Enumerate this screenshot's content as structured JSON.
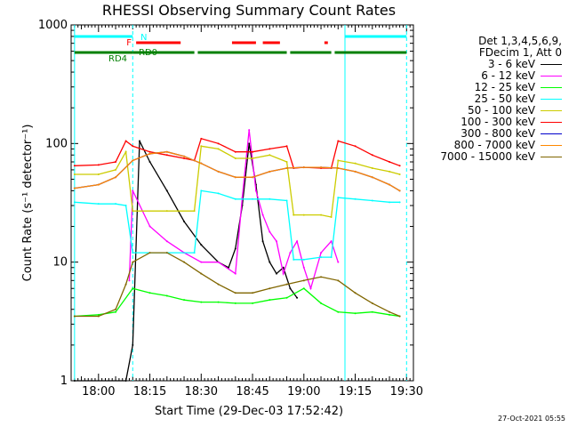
{
  "chart_data": {
    "type": "line",
    "title": "RHESSI Observing Summary Count Rates",
    "xlabel": "Start Time (29-Dec-03 17:52:42)",
    "ylabel": "Count Rate (s⁻¹ detector⁻¹)",
    "yscale": "log",
    "ylim": [
      1,
      1000
    ],
    "y_ticks": [
      "1",
      "10",
      "100",
      "1000"
    ],
    "xlim": [
      "17:52",
      "19:32"
    ],
    "x_ticks": [
      "18:00",
      "18:15",
      "18:30",
      "18:45",
      "19:00",
      "19:15",
      "19:30"
    ],
    "grid": false,
    "legend_placement": "right",
    "legend_header": [
      "Det 1,3,4,5,6,9,",
      "FDecim 1, Att 0"
    ],
    "series": [
      {
        "name": "3 - 6 keV",
        "color": "#000000",
        "x": [
          "17:53",
          "18:08",
          "18:10",
          "18:12",
          "18:15",
          "18:20",
          "18:25",
          "18:30",
          "18:35",
          "18:38",
          "18:40",
          "18:42",
          "18:44",
          "18:46",
          "18:48",
          "18:50",
          "18:52",
          "18:54",
          "18:56",
          "18:58"
        ],
        "y": [
          1,
          1,
          2,
          105,
          70,
          40,
          22,
          14,
          10,
          9,
          13,
          30,
          100,
          45,
          15,
          10,
          8,
          9,
          6,
          5
        ]
      },
      {
        "name": "6 - 12 keV",
        "color": "#ff00ff",
        "x": [
          "18:09",
          "18:10",
          "18:15",
          "18:20",
          "18:25",
          "18:30",
          "18:35",
          "18:40",
          "18:42",
          "18:44",
          "18:46",
          "18:48",
          "18:50",
          "18:52",
          "18:54",
          "18:56",
          "18:58",
          "19:00",
          "19:02",
          "19:05",
          "19:08",
          "19:10"
        ],
        "y": [
          7,
          40,
          20,
          15,
          12,
          10,
          10,
          8,
          35,
          130,
          40,
          25,
          18,
          15,
          8,
          12,
          15,
          9,
          6,
          12,
          15,
          10
        ]
      },
      {
        "name": "12 - 25 keV",
        "color": "#00ff00",
        "x": [
          "17:53",
          "18:00",
          "18:05",
          "18:10",
          "18:15",
          "18:20",
          "18:25",
          "18:30",
          "18:35",
          "18:40",
          "18:45",
          "18:50",
          "18:55",
          "19:00",
          "19:05",
          "19:10",
          "19:15",
          "19:20",
          "19:25",
          "19:28"
        ],
        "y": [
          3.5,
          3.6,
          3.8,
          6,
          5.5,
          5.2,
          4.8,
          4.6,
          4.6,
          4.5,
          4.5,
          4.8,
          5,
          6,
          4.5,
          3.8,
          3.7,
          3.8,
          3.6,
          3.5
        ]
      },
      {
        "name": "25 - 50 keV",
        "color": "#00ffff",
        "x": [
          "17:53",
          "18:00",
          "18:05",
          "18:08",
          "18:10",
          "18:20",
          "18:28",
          "18:30",
          "18:35",
          "18:40",
          "18:45",
          "18:50",
          "18:55",
          "18:57",
          "19:00",
          "19:05",
          "19:08",
          "19:10",
          "19:15",
          "19:20",
          "19:25",
          "19:28"
        ],
        "y": [
          32,
          31,
          31,
          30,
          12,
          12,
          12,
          40,
          38,
          34,
          34,
          34,
          33,
          10.5,
          10.5,
          11,
          11,
          35,
          34,
          33,
          32,
          32
        ]
      },
      {
        "name": "50 - 100 keV",
        "color": "#cccc00",
        "x": [
          "17:53",
          "18:00",
          "18:05",
          "18:08",
          "18:10",
          "18:20",
          "18:28",
          "18:30",
          "18:35",
          "18:40",
          "18:45",
          "18:50",
          "18:55",
          "18:57",
          "19:00",
          "19:05",
          "19:08",
          "19:10",
          "19:15",
          "19:20",
          "19:25",
          "19:28"
        ],
        "y": [
          55,
          55,
          60,
          85,
          27,
          27,
          27,
          95,
          90,
          75,
          75,
          80,
          70,
          25,
          25,
          25,
          24,
          72,
          68,
          62,
          58,
          55
        ]
      },
      {
        "name": "100 - 300 keV",
        "color": "#ff0000",
        "x": [
          "17:53",
          "18:00",
          "18:05",
          "18:08",
          "18:10",
          "18:15",
          "18:20",
          "18:25",
          "18:28",
          "18:30",
          "18:35",
          "18:40",
          "18:45",
          "18:50",
          "18:55",
          "18:57",
          "19:00",
          "19:05",
          "19:08",
          "19:10",
          "19:15",
          "19:20",
          "19:25",
          "19:28"
        ],
        "y": [
          65,
          66,
          70,
          105,
          95,
          85,
          80,
          75,
          72,
          110,
          100,
          85,
          85,
          90,
          95,
          62,
          63,
          62,
          62,
          105,
          95,
          80,
          70,
          65
        ]
      },
      {
        "name": "300 - 800 keV",
        "color": "#0000cc",
        "x": [
          "17:53",
          "18:00",
          "18:05",
          "18:10",
          "18:15",
          "18:20",
          "18:25",
          "18:30",
          "18:35",
          "18:40",
          "18:45",
          "18:50",
          "18:55",
          "19:00",
          "19:05",
          "19:10",
          "19:15",
          "19:20",
          "19:25",
          "19:28"
        ],
        "y": [
          42,
          45,
          52,
          72,
          82,
          85,
          78,
          68,
          58,
          52,
          52,
          58,
          62,
          63,
          63,
          62,
          58,
          52,
          45,
          40
        ]
      },
      {
        "name": "800 - 7000 keV",
        "color": "#ff8800",
        "x": [
          "17:53",
          "18:00",
          "18:05",
          "18:10",
          "18:15",
          "18:20",
          "18:25",
          "18:30",
          "18:35",
          "18:40",
          "18:45",
          "18:50",
          "18:55",
          "19:00",
          "19:05",
          "19:10",
          "19:15",
          "19:20",
          "19:25",
          "19:28"
        ],
        "y": [
          42,
          45,
          52,
          72,
          82,
          85,
          78,
          68,
          58,
          52,
          52,
          58,
          62,
          63,
          63,
          62,
          58,
          52,
          45,
          40
        ]
      },
      {
        "name": "7000 - 15000 keV",
        "color": "#806600",
        "x": [
          "17:53",
          "18:00",
          "18:05",
          "18:08",
          "18:10",
          "18:15",
          "18:20",
          "18:25",
          "18:30",
          "18:35",
          "18:40",
          "18:45",
          "18:50",
          "18:55",
          "19:00",
          "19:05",
          "19:10",
          "19:15",
          "19:20",
          "19:25",
          "19:28"
        ],
        "y": [
          3.5,
          3.5,
          4,
          6.5,
          10,
          12,
          12,
          10,
          8,
          6.5,
          5.5,
          5.5,
          6,
          6.5,
          7,
          7.5,
          7,
          5.5,
          4.5,
          3.8,
          3.5
        ]
      }
    ],
    "status_bars": [
      {
        "label": "N",
        "color": "#00ffff",
        "segments": [
          [
            "17:53",
            "18:10"
          ],
          [
            "19:12",
            "19:30"
          ]
        ]
      },
      {
        "label": "F",
        "color": "#ff0000",
        "segments": [
          [
            "18:11",
            "18:24"
          ],
          [
            "18:39",
            "18:46"
          ],
          [
            "18:48",
            "18:53"
          ],
          [
            "19:06",
            "19:07"
          ]
        ]
      },
      {
        "label": "RD0",
        "color": "#008000",
        "segments": []
      },
      {
        "label": "RD4",
        "color": "#008000",
        "segments": [
          [
            "17:53",
            "18:10"
          ],
          [
            "18:10",
            "18:28"
          ],
          [
            "18:29",
            "18:55"
          ],
          [
            "18:56",
            "19:08"
          ],
          [
            "19:09",
            "19:30"
          ]
        ]
      }
    ],
    "markers": [
      {
        "t": "17:53",
        "color": "#00ffff",
        "style": "solid"
      },
      {
        "t": "18:10",
        "color": "#00ffff",
        "style": "dashed"
      },
      {
        "t": "19:12",
        "color": "#00ffff",
        "style": "solid"
      },
      {
        "t": "19:30",
        "color": "#00ffff",
        "style": "dashed"
      }
    ]
  },
  "footer_date": "27-Oct-2021 05:55"
}
